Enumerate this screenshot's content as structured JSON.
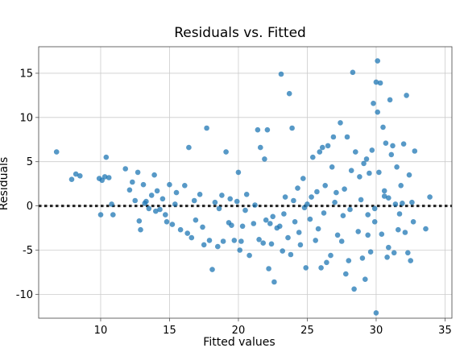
{
  "chart_data": {
    "type": "scatter",
    "title": "Residuals vs. Fitted",
    "xlabel": "Fitted values",
    "ylabel": "Residuals",
    "xlim": [
      5.5,
      35.5
    ],
    "ylim": [
      -12.7,
      18.0
    ],
    "xticks": [
      10,
      15,
      20,
      25,
      30,
      35
    ],
    "yticks": [
      -10,
      -5,
      0,
      5,
      10,
      15
    ],
    "grid": true,
    "color": "#1f77b4",
    "reference_line": {
      "y": 0,
      "style": "dotted",
      "color": "#222222"
    },
    "points": [
      [
        6.8,
        6.1
      ],
      [
        7.9,
        3.0
      ],
      [
        8.2,
        3.6
      ],
      [
        8.5,
        3.4
      ],
      [
        9.9,
        3.1
      ],
      [
        10.1,
        2.9
      ],
      [
        10.3,
        3.3
      ],
      [
        10.4,
        5.5
      ],
      [
        10.6,
        3.2
      ],
      [
        10.8,
        0.2
      ],
      [
        10.9,
        -1.0
      ],
      [
        10.0,
        -1.0
      ],
      [
        11.8,
        4.2
      ],
      [
        12.1,
        1.8
      ],
      [
        12.3,
        2.7
      ],
      [
        12.5,
        0.6
      ],
      [
        12.7,
        3.8
      ],
      [
        12.8,
        -1.7
      ],
      [
        12.9,
        -2.7
      ],
      [
        13.1,
        2.4
      ],
      [
        13.3,
        0.5
      ],
      [
        13.5,
        -0.3
      ],
      [
        13.7,
        1.2
      ],
      [
        13.9,
        3.5
      ],
      [
        14.1,
        1.7
      ],
      [
        14.3,
        -0.4
      ],
      [
        14.5,
        0.8
      ],
      [
        14.7,
        -1.0
      ],
      [
        14.8,
        -1.8
      ],
      [
        15.0,
        2.4
      ],
      [
        15.2,
        -2.1
      ],
      [
        15.4,
        0.2
      ],
      [
        15.8,
        -2.7
      ],
      [
        16.1,
        2.3
      ],
      [
        16.3,
        -3.1
      ],
      [
        16.4,
        6.6
      ],
      [
        16.6,
        -3.6
      ],
      [
        16.9,
        -1.6
      ],
      [
        17.2,
        1.3
      ],
      [
        17.4,
        -2.4
      ],
      [
        17.5,
        -4.4
      ],
      [
        17.7,
        8.8
      ],
      [
        17.9,
        -3.9
      ],
      [
        18.1,
        -7.2
      ],
      [
        18.3,
        0.4
      ],
      [
        18.5,
        -4.6
      ],
      [
        18.8,
        1.2
      ],
      [
        18.9,
        -4.0
      ],
      [
        19.1,
        6.1
      ],
      [
        19.3,
        -1.9
      ],
      [
        19.5,
        -2.2
      ],
      [
        19.7,
        -3.9
      ],
      [
        19.9,
        0.5
      ],
      [
        20.0,
        3.8
      ],
      [
        20.1,
        -5.0
      ],
      [
        20.3,
        -2.3
      ],
      [
        20.6,
        1.3
      ],
      [
        20.8,
        -5.6
      ],
      [
        21.1,
        -2.0
      ],
      [
        21.4,
        8.6
      ],
      [
        21.6,
        6.6
      ],
      [
        21.8,
        -4.2
      ],
      [
        21.9,
        5.3
      ],
      [
        22.1,
        8.6
      ],
      [
        22.2,
        -7.1
      ],
      [
        22.3,
        -2.0
      ],
      [
        22.4,
        -4.3
      ],
      [
        22.6,
        -8.6
      ],
      [
        22.8,
        -2.5
      ],
      [
        23.1,
        14.9
      ],
      [
        23.2,
        -5.1
      ],
      [
        23.4,
        1.0
      ],
      [
        23.6,
        -3.6
      ],
      [
        23.7,
        12.7
      ],
      [
        23.8,
        -5.5
      ],
      [
        23.9,
        8.8
      ],
      [
        24.1,
        -1.8
      ],
      [
        24.3,
        2.0
      ],
      [
        24.5,
        -4.4
      ],
      [
        24.7,
        3.1
      ],
      [
        24.9,
        -7.0
      ],
      [
        25.0,
        0.2
      ],
      [
        25.2,
        -1.5
      ],
      [
        25.4,
        5.5
      ],
      [
        25.6,
        -3.9
      ],
      [
        25.7,
        1.6
      ],
      [
        25.9,
        6.1
      ],
      [
        26.0,
        -7.0
      ],
      [
        26.1,
        6.6
      ],
      [
        26.3,
        2.3
      ],
      [
        26.4,
        -6.4
      ],
      [
        26.5,
        6.8
      ],
      [
        26.7,
        -5.6
      ],
      [
        26.9,
        7.8
      ],
      [
        27.0,
        0.4
      ],
      [
        27.2,
        -3.3
      ],
      [
        27.4,
        9.4
      ],
      [
        27.5,
        -4.0
      ],
      [
        27.7,
        1.9
      ],
      [
        27.8,
        -7.7
      ],
      [
        27.9,
        7.8
      ],
      [
        28.0,
        -6.2
      ],
      [
        28.2,
        4.0
      ],
      [
        28.3,
        15.1
      ],
      [
        28.4,
        -9.4
      ],
      [
        28.5,
        6.1
      ],
      [
        28.7,
        -2.9
      ],
      [
        28.8,
        3.3
      ],
      [
        29.0,
        -5.9
      ],
      [
        29.1,
        4.8
      ],
      [
        29.2,
        -8.3
      ],
      [
        29.3,
        5.3
      ],
      [
        29.4,
        -1.0
      ],
      [
        29.5,
        3.7
      ],
      [
        29.6,
        -5.2
      ],
      [
        29.7,
        6.3
      ],
      [
        29.8,
        11.6
      ],
      [
        29.9,
        -1.8
      ],
      [
        30.0,
        14.0
      ],
      [
        30.0,
        -12.1
      ],
      [
        30.1,
        16.4
      ],
      [
        30.1,
        10.6
      ],
      [
        30.2,
        3.8
      ],
      [
        30.3,
        13.9
      ],
      [
        30.4,
        -3.2
      ],
      [
        30.5,
        8.9
      ],
      [
        30.6,
        1.7
      ],
      [
        30.7,
        7.1
      ],
      [
        30.8,
        -5.8
      ],
      [
        30.9,
        0.9
      ],
      [
        31.0,
        12.0
      ],
      [
        31.1,
        5.8
      ],
      [
        31.2,
        6.8
      ],
      [
        31.3,
        -5.3
      ],
      [
        31.4,
        0.2
      ],
      [
        31.5,
        4.4
      ],
      [
        31.6,
        -2.7
      ],
      [
        31.7,
        -0.9
      ],
      [
        31.8,
        2.3
      ],
      [
        32.0,
        7.0
      ],
      [
        32.1,
        -3.0
      ],
      [
        32.2,
        12.5
      ],
      [
        32.3,
        -5.3
      ],
      [
        32.4,
        3.5
      ],
      [
        32.5,
        -6.2
      ],
      [
        32.6,
        0.4
      ],
      [
        32.7,
        -1.8
      ],
      [
        32.8,
        6.2
      ],
      [
        33.6,
        -2.6
      ],
      [
        33.9,
        1.0
      ],
      [
        13.2,
        0.3
      ],
      [
        14.0,
        -0.6
      ],
      [
        15.5,
        1.5
      ],
      [
        16.8,
        0.6
      ],
      [
        18.6,
        -0.3
      ],
      [
        19.4,
        0.8
      ],
      [
        20.5,
        -0.5
      ],
      [
        21.2,
        0.1
      ],
      [
        22.5,
        -1.2
      ],
      [
        23.3,
        -0.9
      ],
      [
        24.0,
        0.6
      ],
      [
        24.8,
        -0.2
      ],
      [
        25.3,
        1.0
      ],
      [
        26.2,
        -0.8
      ],
      [
        27.1,
        1.5
      ],
      [
        28.1,
        -0.4
      ],
      [
        28.9,
        0.7
      ],
      [
        29.9,
        -0.3
      ],
      [
        30.6,
        1.1
      ],
      [
        31.9,
        0.3
      ],
      [
        26.8,
        4.4
      ],
      [
        25.8,
        -2.6
      ],
      [
        27.6,
        -1.1
      ],
      [
        29.4,
        -3.3
      ],
      [
        30.9,
        -4.7
      ],
      [
        23.0,
        -2.3
      ],
      [
        24.4,
        -3.0
      ],
      [
        22.0,
        -1.6
      ],
      [
        21.5,
        -3.8
      ],
      [
        20.2,
        -4.0
      ]
    ]
  }
}
